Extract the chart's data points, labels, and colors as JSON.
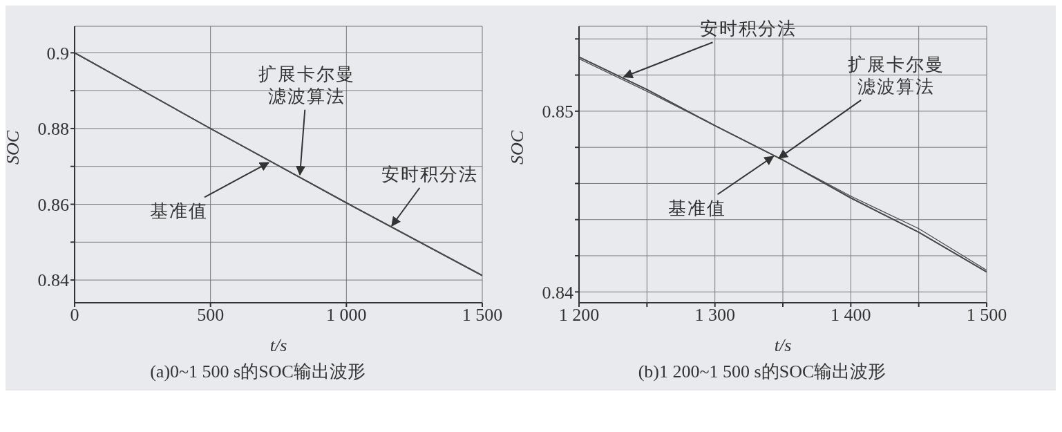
{
  "chart_data": [
    {
      "type": "line",
      "title": "(a)0~1 500 s的SOC输出波形",
      "xlabel": "t/s",
      "ylabel": "SOC",
      "x": [
        0,
        500,
        1000,
        1500
      ],
      "series": [
        {
          "color": "#4a4a4a",
          "values": [
            0.9,
            0.88,
            0.8604,
            0.8412
          ]
        },
        {
          "color": "#4a4a4a",
          "values": [
            0.9,
            0.88,
            0.8604,
            0.8412
          ]
        },
        {
          "color": "#4a4a4a",
          "values": [
            0.9,
            0.88,
            0.8603,
            0.8411
          ]
        }
      ],
      "xlim": [
        0,
        1500
      ],
      "xticks": [
        0,
        500,
        {
          "value": 1000,
          "label": "1 000"
        },
        {
          "value": 1500,
          "label": "1 500"
        }
      ],
      "ylim": [
        0.834,
        0.907
      ],
      "yticks": [
        0.84,
        {
          "value": 0.85,
          "label": null
        },
        0.86,
        {
          "value": 0.87,
          "label": null
        },
        0.88,
        {
          "value": 0.89,
          "label": null
        },
        0.9
      ],
      "grid": true,
      "line_style": "solid",
      "annotations": [
        {
          "text": "基准值",
          "x": 714,
          "y": 0.871
        },
        {
          "text": "扩展卡尔曼滤波算法",
          "x": 829,
          "y": 0.8678
        },
        {
          "text": "安时积分法",
          "x": 1167,
          "y": 0.8543
        }
      ]
    },
    {
      "type": "line",
      "title": "(b)1 200~1 500 s的SOC输出波形",
      "xlabel": "t/s",
      "ylabel": "SOC",
      "x": [
        1200,
        1250,
        1300,
        1350,
        1400,
        1450,
        1500
      ],
      "series": [
        {
          "color": "#4a4a4a",
          "values": [
            0.853,
            0.8512,
            0.8492,
            0.8473,
            0.8452,
            0.8433,
            0.8411
          ]
        },
        {
          "color": "#4a4a4a",
          "values": [
            0.853,
            0.8512,
            0.8492,
            0.8473,
            0.8452,
            0.8433,
            0.8411
          ]
        },
        {
          "color": "#4a4a4a",
          "values": [
            0.8529,
            0.8511,
            0.8492,
            0.8473,
            0.8453,
            0.8435,
            0.8412
          ]
        }
      ],
      "xlim": [
        1200,
        1500
      ],
      "xticks": [
        {
          "value": 1200,
          "label": "1 200"
        },
        {
          "value": 1250,
          "label": null
        },
        {
          "value": 1300,
          "label": "1 300"
        },
        {
          "value": 1350,
          "label": null
        },
        {
          "value": 1400,
          "label": "1 400"
        },
        {
          "value": 1450,
          "label": null
        },
        {
          "value": 1500,
          "label": "1 500"
        }
      ],
      "ylim": [
        0.8394,
        0.8547
      ],
      "yticks": [
        0.84,
        {
          "value": 0.842,
          "label": null
        },
        {
          "value": 0.844,
          "label": null
        },
        {
          "value": 0.846,
          "label": null
        },
        {
          "value": 0.848,
          "label": null
        },
        0.85,
        {
          "value": 0.852,
          "label": null
        },
        {
          "value": 0.854,
          "label": null
        }
      ],
      "grid": true,
      "line_style": "solid",
      "annotations": [
        {
          "text": "安时积分法",
          "x": 1233,
          "y": 0.8519
        },
        {
          "text": "扩展卡尔曼滤波算法",
          "x": 1347,
          "y": 0.8474
        },
        {
          "text": "基准值",
          "x": 1343,
          "y": 0.8475
        }
      ]
    }
  ]
}
